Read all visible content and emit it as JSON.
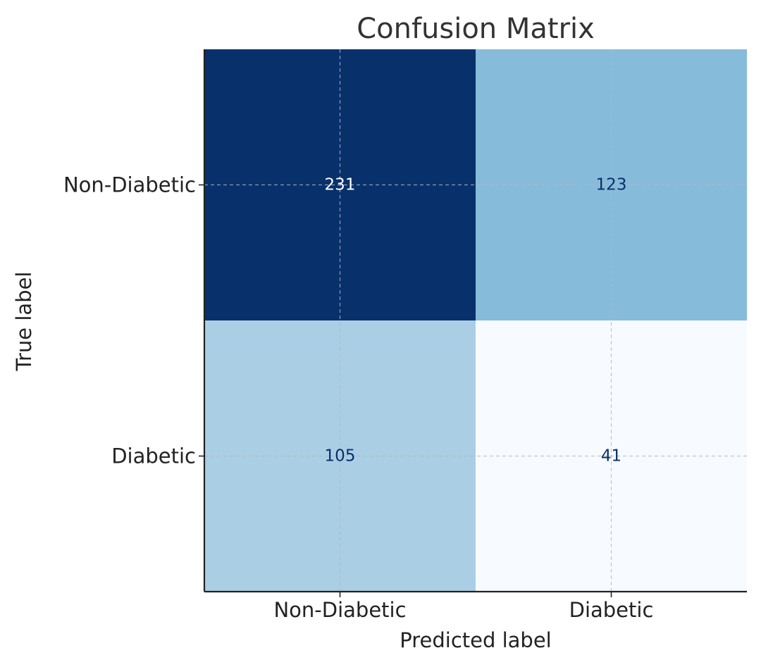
{
  "chart_data": {
    "type": "heatmap",
    "title": "Confusion Matrix",
    "xlabel": "Predicted label",
    "ylabel": "True label",
    "x_categories": [
      "Non-Diabetic",
      "Diabetic"
    ],
    "y_categories": [
      "Non-Diabetic",
      "Diabetic"
    ],
    "values": [
      [
        231,
        123
      ],
      [
        105,
        41
      ]
    ],
    "colormap": "Blues",
    "grid": true,
    "colors": {
      "cells": [
        [
          "#08306b",
          "#87bbda"
        ],
        [
          "#aacfe5",
          "#f7fbff"
        ]
      ],
      "text_on_dark": "#ffffff",
      "text_on_light": "#08306b"
    }
  }
}
